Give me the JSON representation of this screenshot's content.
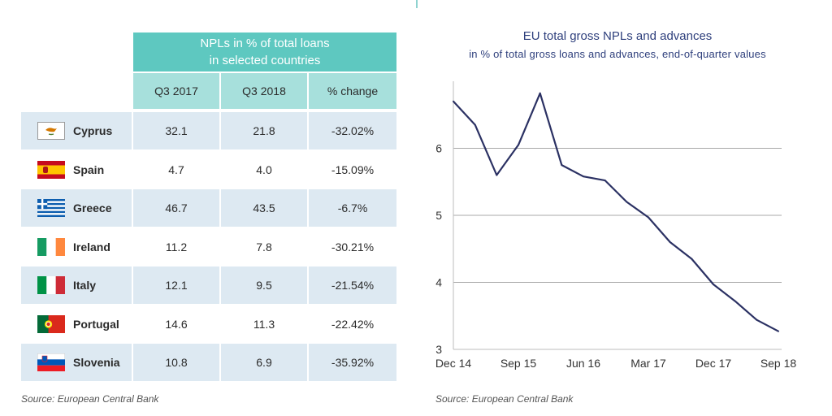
{
  "table": {
    "title_line1": "NPLs in % of total loans",
    "title_line2": "in selected countries",
    "columns": [
      "Q3 2017",
      "Q3 2018",
      "% change"
    ],
    "rows": [
      {
        "country": "Cyprus",
        "flag": "cyprus-flag-icon",
        "q3_2017": "32.1",
        "q3_2018": "21.8",
        "change": "-32.02%"
      },
      {
        "country": "Spain",
        "flag": "spain-flag-icon",
        "q3_2017": "4.7",
        "q3_2018": "4.0",
        "change": "-15.09%"
      },
      {
        "country": "Greece",
        "flag": "greece-flag-icon",
        "q3_2017": "46.7",
        "q3_2018": "43.5",
        "change": "-6.7%"
      },
      {
        "country": "Ireland",
        "flag": "ireland-flag-icon",
        "q3_2017": "11.2",
        "q3_2018": "7.8",
        "change": "-30.21%"
      },
      {
        "country": "Italy",
        "flag": "italy-flag-icon",
        "q3_2017": "12.1",
        "q3_2018": "9.5",
        "change": "-21.54%"
      },
      {
        "country": "Portugal",
        "flag": "portugal-flag-icon",
        "q3_2017": "14.6",
        "q3_2018": "11.3",
        "change": "-22.42%"
      },
      {
        "country": "Slovenia",
        "flag": "slovenia-flag-icon",
        "q3_2017": "10.8",
        "q3_2018": "6.9",
        "change": "-35.92%"
      }
    ],
    "source": "Source: European Central Bank",
    "colors": {
      "header": "#5ec8c0",
      "subheader": "#a7e0dc",
      "row_band": "#dde9f2"
    }
  },
  "chart_data": {
    "type": "line",
    "title": "EU total gross NPLs and advances",
    "subtitle": "in % of total gross loans and advances, end-of-quarter values",
    "x": [
      "Dec 14",
      "Mar 15",
      "Jun 15",
      "Sep 15",
      "Dec 15",
      "Mar 16",
      "Jun 16",
      "Sep 16",
      "Dec 16",
      "Mar 17",
      "Jun 17",
      "Sep 17",
      "Dec 17",
      "Mar 18",
      "Jun 18",
      "Sep 18"
    ],
    "x_tick_labels": [
      "Dec 14",
      "Sep 15",
      "Jun 16",
      "Mar 17",
      "Dec 17",
      "Sep 18"
    ],
    "series": [
      {
        "values": [
          6.7,
          6.35,
          5.6,
          6.05,
          6.82,
          5.75,
          5.58,
          5.52,
          5.2,
          4.97,
          4.6,
          4.35,
          3.97,
          3.72,
          3.44,
          3.27
        ]
      }
    ],
    "ylim": [
      3,
      7
    ],
    "y_ticks": [
      3,
      4,
      5,
      6
    ],
    "grid": "horizontal",
    "line_color": "#2b3163",
    "source": "Source: European Central Bank"
  }
}
